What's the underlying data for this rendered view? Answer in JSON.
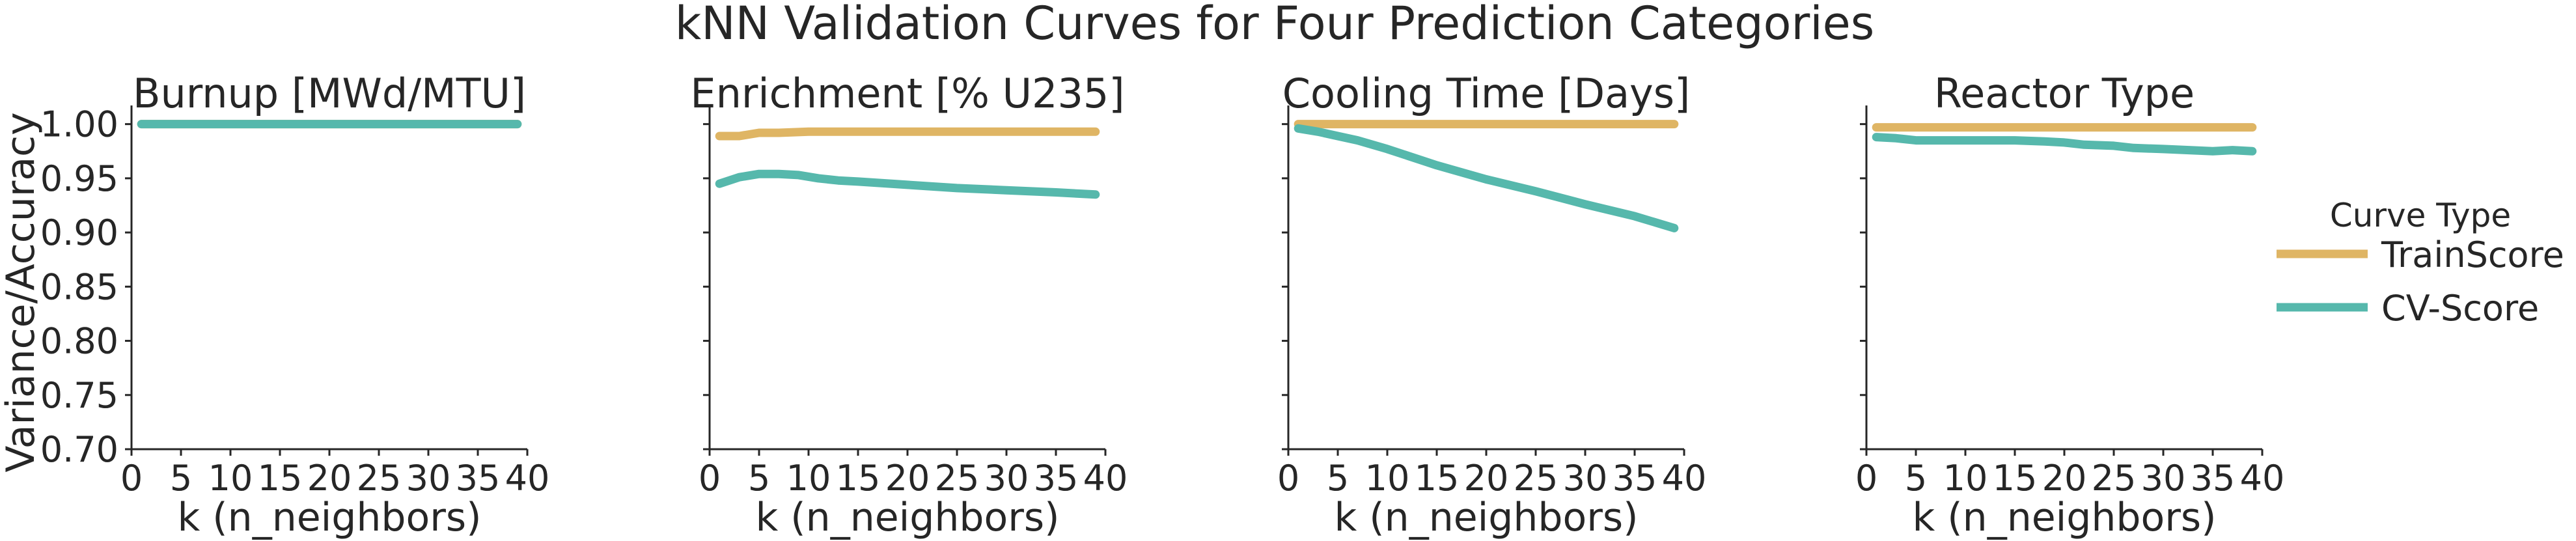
{
  "figure": {
    "title": "kNN Validation Curves for Four Prediction Categories",
    "ylabel": "Variance/Accuracy",
    "legend_title": "Curve Type",
    "legend_placement": "right"
  },
  "colors": {
    "TrainScore": "#dfb564",
    "CV-Score": "#56b8ac",
    "axis": "#262626"
  },
  "chart_data": [
    {
      "type": "line",
      "title": "Burnup [MWd/MTU]",
      "xlabel": "k (n_neighbors)",
      "ylabel": "Variance/Accuracy",
      "xlim": [
        0,
        40
      ],
      "ylim": [
        0.7,
        1.01
      ],
      "xticks": [
        0,
        5,
        10,
        15,
        20,
        25,
        30,
        35,
        40
      ],
      "yticks": [
        0.7,
        0.75,
        0.8,
        0.85,
        0.9,
        0.95,
        1.0
      ],
      "grid": false,
      "series": [
        {
          "name": "TrainScore",
          "x": [
            1,
            5,
            10,
            15,
            20,
            25,
            30,
            35,
            39
          ],
          "values": [
            1.0,
            1.0,
            1.0,
            1.0,
            1.0,
            1.0,
            1.0,
            1.0,
            1.0
          ]
        },
        {
          "name": "CV-Score",
          "x": [
            1,
            5,
            10,
            15,
            20,
            25,
            30,
            35,
            39
          ],
          "values": [
            1.0,
            1.0,
            1.0,
            1.0,
            1.0,
            1.0,
            1.0,
            1.0,
            1.0
          ]
        }
      ]
    },
    {
      "type": "line",
      "title": "Enrichment [% U235]",
      "xlabel": "k (n_neighbors)",
      "xlim": [
        0,
        40
      ],
      "ylim": [
        0.7,
        1.01
      ],
      "xticks": [
        0,
        5,
        10,
        15,
        20,
        25,
        30,
        35,
        40
      ],
      "grid": false,
      "series": [
        {
          "name": "TrainScore",
          "x": [
            1,
            3,
            5,
            7,
            10,
            15,
            20,
            25,
            30,
            35,
            39
          ],
          "values": [
            0.989,
            0.989,
            0.992,
            0.992,
            0.993,
            0.993,
            0.993,
            0.993,
            0.993,
            0.993,
            0.993
          ]
        },
        {
          "name": "CV-Score",
          "x": [
            1,
            3,
            5,
            7,
            9,
            11,
            13,
            15,
            20,
            25,
            30,
            35,
            39
          ],
          "values": [
            0.945,
            0.951,
            0.954,
            0.954,
            0.953,
            0.95,
            0.948,
            0.947,
            0.944,
            0.941,
            0.939,
            0.937,
            0.935
          ]
        }
      ]
    },
    {
      "type": "line",
      "title": "Cooling Time [Days]",
      "xlabel": "k (n_neighbors)",
      "xlim": [
        0,
        40
      ],
      "ylim": [
        0.7,
        1.01
      ],
      "xticks": [
        0,
        5,
        10,
        15,
        20,
        25,
        30,
        35,
        40
      ],
      "grid": false,
      "series": [
        {
          "name": "TrainScore",
          "x": [
            1,
            5,
            10,
            15,
            20,
            25,
            30,
            35,
            39
          ],
          "values": [
            1.0,
            1.0,
            1.0,
            1.0,
            1.0,
            1.0,
            1.0,
            1.0,
            1.0
          ]
        },
        {
          "name": "CV-Score",
          "x": [
            1,
            3,
            5,
            7,
            10,
            15,
            20,
            25,
            30,
            35,
            39
          ],
          "values": [
            0.996,
            0.993,
            0.989,
            0.985,
            0.977,
            0.962,
            0.949,
            0.938,
            0.926,
            0.915,
            0.904
          ]
        }
      ]
    },
    {
      "type": "line",
      "title": "Reactor Type",
      "xlabel": "k (n_neighbors)",
      "xlim": [
        0,
        40
      ],
      "ylim": [
        0.7,
        1.01
      ],
      "xticks": [
        0,
        5,
        10,
        15,
        20,
        25,
        30,
        35,
        40
      ],
      "grid": false,
      "series": [
        {
          "name": "TrainScore",
          "x": [
            1,
            5,
            10,
            15,
            20,
            25,
            30,
            35,
            39
          ],
          "values": [
            0.997,
            0.997,
            0.997,
            0.997,
            0.997,
            0.997,
            0.997,
            0.997,
            0.997
          ]
        },
        {
          "name": "CV-Score",
          "x": [
            1,
            3,
            5,
            10,
            15,
            18,
            20,
            22,
            25,
            27,
            30,
            35,
            37,
            39
          ],
          "values": [
            0.988,
            0.987,
            0.985,
            0.985,
            0.985,
            0.984,
            0.983,
            0.981,
            0.98,
            0.978,
            0.977,
            0.975,
            0.976,
            0.975
          ]
        }
      ]
    }
  ]
}
